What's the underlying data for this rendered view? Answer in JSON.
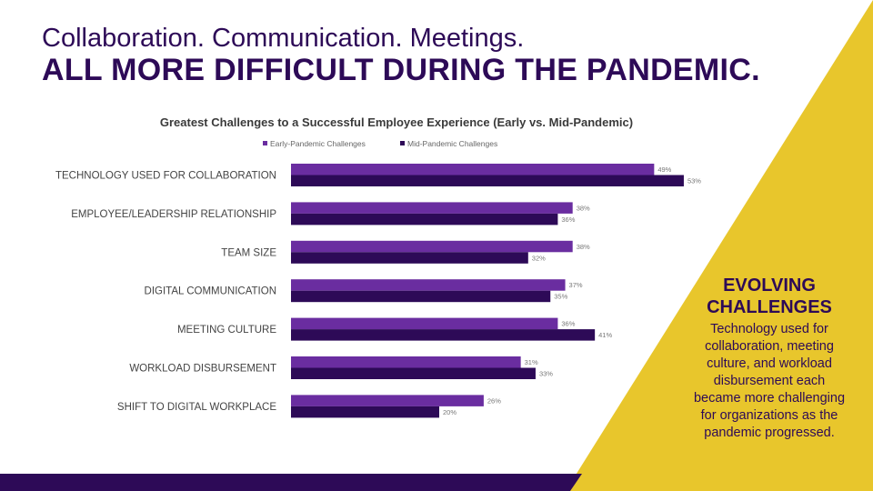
{
  "headline": {
    "line1": "Collaboration. Communication. Meetings.",
    "line2": "ALL MORE DIFFICULT DURING THE PANDEMIC."
  },
  "colors": {
    "dark_purple": "#2d0a57",
    "purple": "#6a2da0",
    "yellow": "#e8c62c"
  },
  "sidebar": {
    "heading": "EVOLVING CHALLENGES",
    "body": "Technology used for collaboration, meeting culture, and workload disbursement each became more challenging for organizations as the pandemic progressed."
  },
  "chart_data": {
    "type": "bar",
    "orientation": "horizontal",
    "title": "Greatest Challenges to a Successful Employee Experience (Early vs. Mid-Pandemic)",
    "categories": [
      "TECHNOLOGY USED FOR COLLABORATION",
      "EMPLOYEE/LEADERSHIP RELATIONSHIP",
      "TEAM SIZE",
      "DIGITAL COMMUNICATION",
      "MEETING CULTURE",
      "WORKLOAD DISBURSEMENT",
      "SHIFT TO DIGITAL WORKPLACE"
    ],
    "series": [
      {
        "name": "Early-Pandemic Challenges",
        "color": "#6a2da0",
        "values": [
          49,
          38,
          38,
          37,
          36,
          31,
          26
        ]
      },
      {
        "name": "Mid-Pandemic Challenges",
        "color": "#2d0a57",
        "values": [
          53,
          36,
          32,
          35,
          41,
          33,
          20
        ]
      }
    ],
    "value_suffix": "%",
    "legend_position": "top",
    "grid": false
  }
}
